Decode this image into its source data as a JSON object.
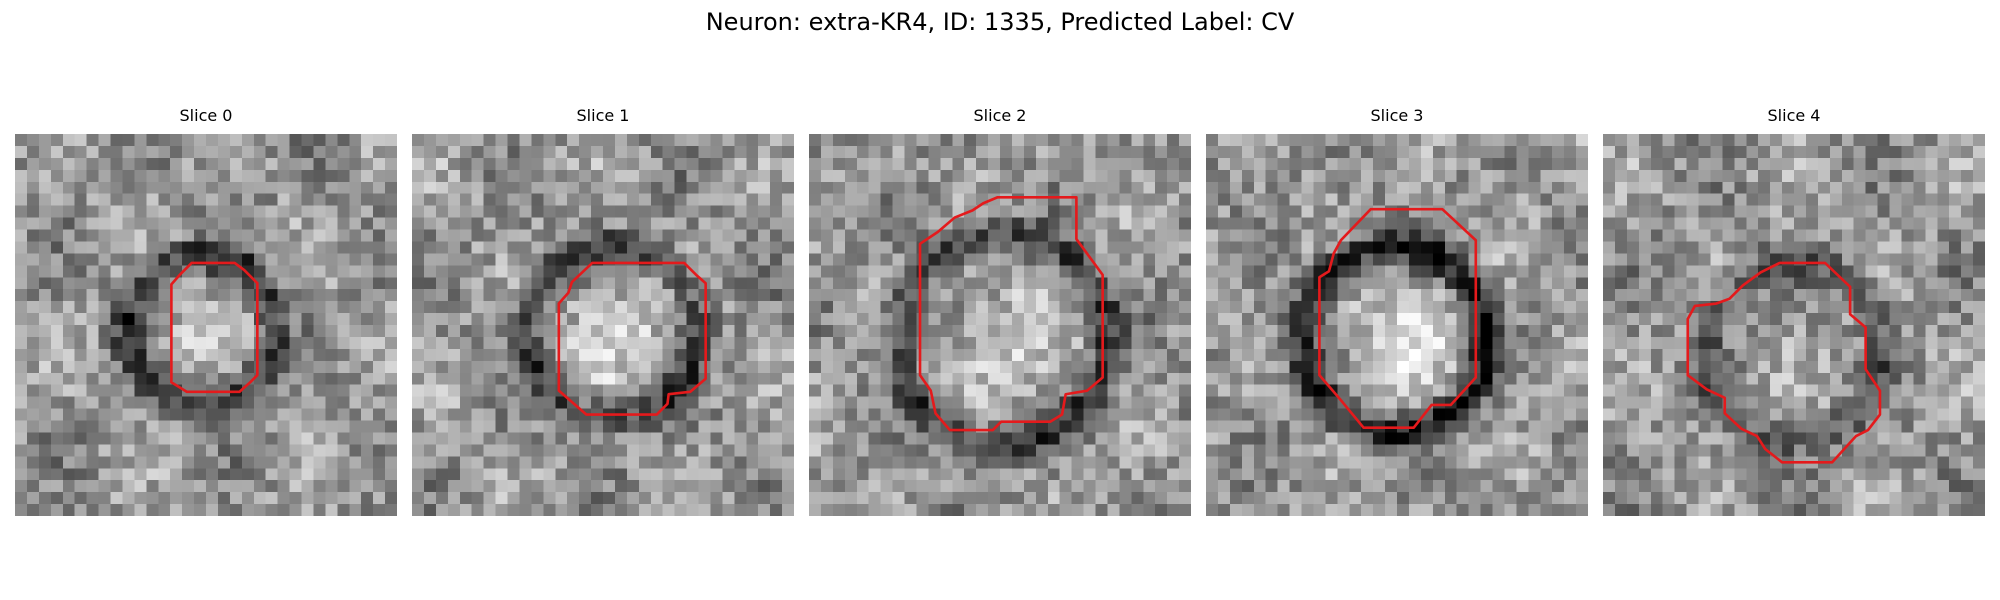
{
  "figure": {
    "title": "Neuron: extra-KR4, ID: 1335, Predicted Label: CV",
    "contour_color": "#e41a1c"
  },
  "panels": [
    {
      "title": "Slice 0"
    },
    {
      "title": "Slice 1"
    },
    {
      "title": "Slice 2"
    },
    {
      "title": "Slice 3"
    },
    {
      "title": "Slice 4"
    }
  ]
}
